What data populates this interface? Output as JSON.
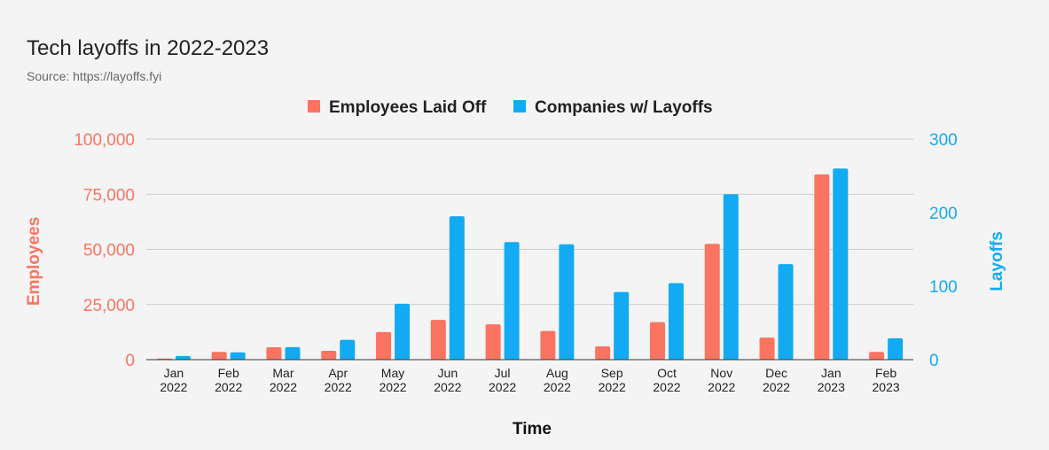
{
  "chart_data": {
    "type": "bar",
    "title": "Tech layoffs in 2022-2023",
    "subtitle": "Source: https://layoffs.fyi",
    "xlabel": "Time",
    "ylabel_left": "Employees",
    "ylabel_right": "Layoffs",
    "legend_position": "top-center",
    "grid": true,
    "ylim_left": [
      0,
      100000
    ],
    "ylim_right": [
      0,
      300
    ],
    "yticks_left": [
      "0",
      "25,000",
      "50,000",
      "75,000",
      "100,000"
    ],
    "yticks_right": [
      "0",
      "100",
      "200",
      "300"
    ],
    "categories": [
      [
        "Jan",
        "2022"
      ],
      [
        "Feb",
        "2022"
      ],
      [
        "Mar",
        "2022"
      ],
      [
        "Apr",
        "2022"
      ],
      [
        "May",
        "2022"
      ],
      [
        "Jun",
        "2022"
      ],
      [
        "Jul",
        "2022"
      ],
      [
        "Aug",
        "2022"
      ],
      [
        "Sep",
        "2022"
      ],
      [
        "Oct",
        "2022"
      ],
      [
        "Nov",
        "2022"
      ],
      [
        "Dec",
        "2022"
      ],
      [
        "Jan",
        "2023"
      ],
      [
        "Feb",
        "2023"
      ]
    ],
    "series": [
      {
        "name": "Employees Laid Off",
        "axis": "left",
        "color": "#fa7461",
        "values": [
          500,
          3500,
          5600,
          4000,
          12500,
          18000,
          16000,
          13000,
          6000,
          17000,
          52500,
          10000,
          84000,
          3500
        ]
      },
      {
        "name": "Companies w/ Layoffs",
        "axis": "right",
        "color": "#12aaf3",
        "values": [
          5,
          10,
          17,
          27,
          76,
          195,
          160,
          157,
          92,
          104,
          225,
          130,
          260,
          29
        ]
      }
    ]
  },
  "colors": {
    "left_axis": "#fa7461",
    "right_axis": "#12aaf3",
    "grid": "#cccccc",
    "baseline": "#333333"
  }
}
